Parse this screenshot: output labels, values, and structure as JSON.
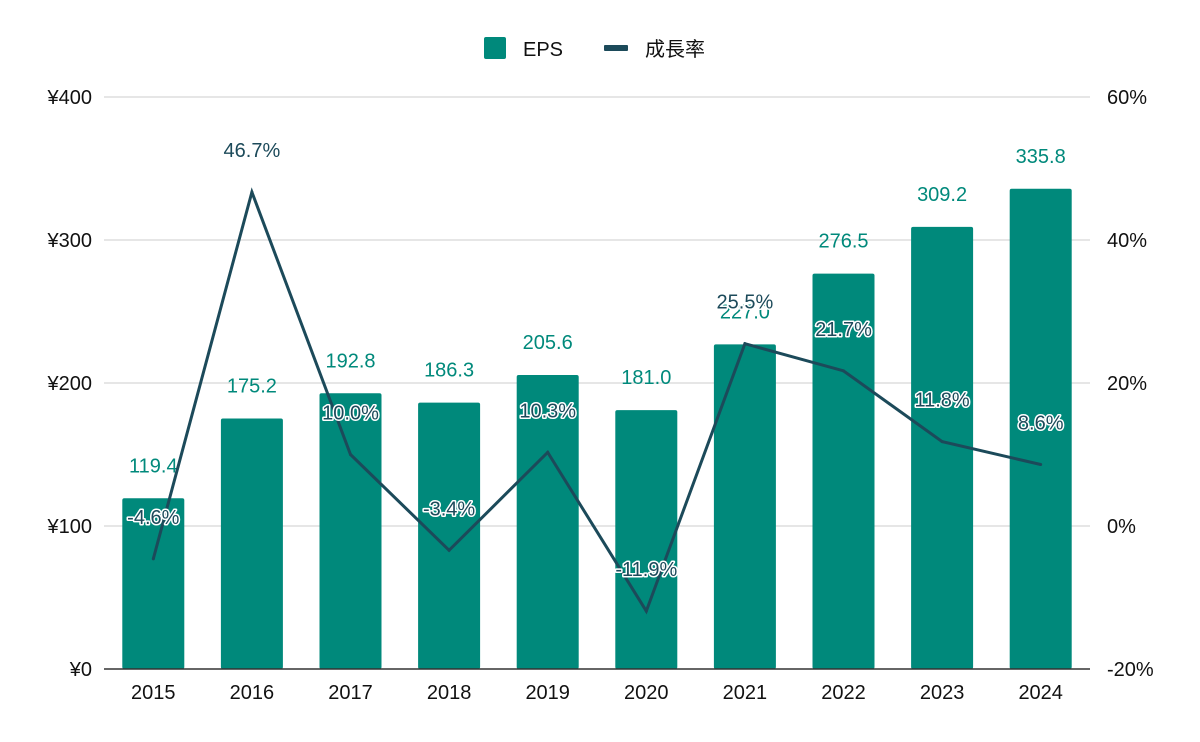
{
  "colors": {
    "bar": "#00897b",
    "line": "#1c4a5a",
    "grid": "#cccccc",
    "axis": "#333333",
    "tick_text": "#111111",
    "background": "#ffffff"
  },
  "legend": {
    "position": "top-center",
    "items": [
      {
        "label": "EPS",
        "type": "bar",
        "icon": "square-swatch"
      },
      {
        "label": "成長率",
        "type": "line",
        "icon": "line-swatch"
      }
    ]
  },
  "chart_data": {
    "type": "bar",
    "categories": [
      "2015",
      "2016",
      "2017",
      "2018",
      "2019",
      "2020",
      "2021",
      "2022",
      "2023",
      "2024"
    ],
    "series": [
      {
        "name": "EPS",
        "type": "bar",
        "axis": "left",
        "values": [
          119.4,
          175.2,
          192.8,
          186.3,
          205.6,
          181.0,
          227.0,
          276.5,
          309.2,
          335.8
        ],
        "labels": [
          "119.4",
          "175.2",
          "192.8",
          "186.3",
          "205.6",
          "181.0",
          "227.0",
          "276.5",
          "309.2",
          "335.8"
        ]
      },
      {
        "name": "成長率",
        "type": "line",
        "axis": "right",
        "values": [
          -4.6,
          46.7,
          10.0,
          -3.4,
          10.3,
          -11.9,
          25.5,
          21.7,
          11.8,
          8.6
        ],
        "labels": [
          "-4.6%",
          "46.7%",
          "10.0%",
          "-3.4%",
          "10.3%",
          "-11.9%",
          "25.5%",
          "21.7%",
          "11.8%",
          "8.6%"
        ]
      }
    ],
    "y_left": {
      "min": 0,
      "max": 400,
      "ticks": [
        0,
        100,
        200,
        300,
        400
      ],
      "tick_labels": [
        "¥0",
        "¥100",
        "¥200",
        "¥300",
        "¥400"
      ]
    },
    "y_right": {
      "min": -20,
      "max": 60,
      "ticks": [
        -20,
        0,
        20,
        40,
        60
      ],
      "tick_labels": [
        "-20%",
        "0%",
        "20%",
        "40%",
        "60%"
      ]
    },
    "grid": true,
    "title": "",
    "xlabel": "",
    "ylabel": ""
  }
}
